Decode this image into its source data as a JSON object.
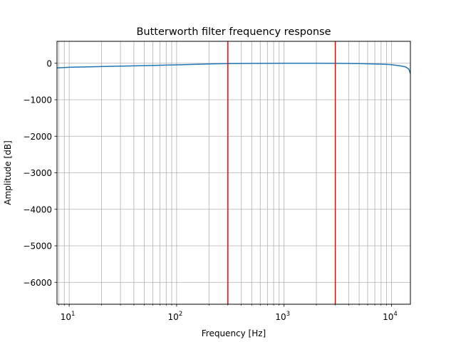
{
  "chart_data": {
    "type": "line",
    "title": "Butterworth filter frequency response",
    "xlabel": "Frequency [Hz]",
    "ylabel": "Amplitude [dB]",
    "xscale": "log",
    "xlim": [
      7.7,
      15000
    ],
    "ylim": [
      -6600,
      600
    ],
    "grid": "both (major and minor on x)",
    "x_ticks": [
      {
        "value": 10,
        "base": "10",
        "exp": "1"
      },
      {
        "value": 100,
        "base": "10",
        "exp": "2"
      },
      {
        "value": 1000,
        "base": "10",
        "exp": "3"
      },
      {
        "value": 10000,
        "base": "10",
        "exp": "4"
      }
    ],
    "y_ticks": [
      {
        "value": 0,
        "label": "0"
      },
      {
        "value": -1000,
        "label": "−1000"
      },
      {
        "value": -2000,
        "label": "−2000"
      },
      {
        "value": -3000,
        "label": "−3000"
      },
      {
        "value": -4000,
        "label": "−4000"
      },
      {
        "value": -5000,
        "label": "−5000"
      },
      {
        "value": -6000,
        "label": "−6000"
      }
    ],
    "series": [
      {
        "color": "#1f77b4",
        "points": [
          [
            7.7,
            -130
          ],
          [
            10,
            -110
          ],
          [
            20,
            -90
          ],
          [
            50,
            -65
          ],
          [
            100,
            -45
          ],
          [
            200,
            -20
          ],
          [
            300,
            -10
          ],
          [
            500,
            -5
          ],
          [
            1000,
            0
          ],
          [
            2000,
            0
          ],
          [
            3000,
            -2
          ],
          [
            5000,
            -10
          ],
          [
            8000,
            -25
          ],
          [
            10000,
            -40
          ],
          [
            12000,
            -70
          ],
          [
            13500,
            -100
          ],
          [
            14500,
            -160
          ],
          [
            15000,
            -280
          ]
        ]
      }
    ],
    "vlines": [
      {
        "x": 300,
        "color": "#ff0000"
      },
      {
        "x": 3000,
        "color": "#ff0000"
      }
    ]
  }
}
